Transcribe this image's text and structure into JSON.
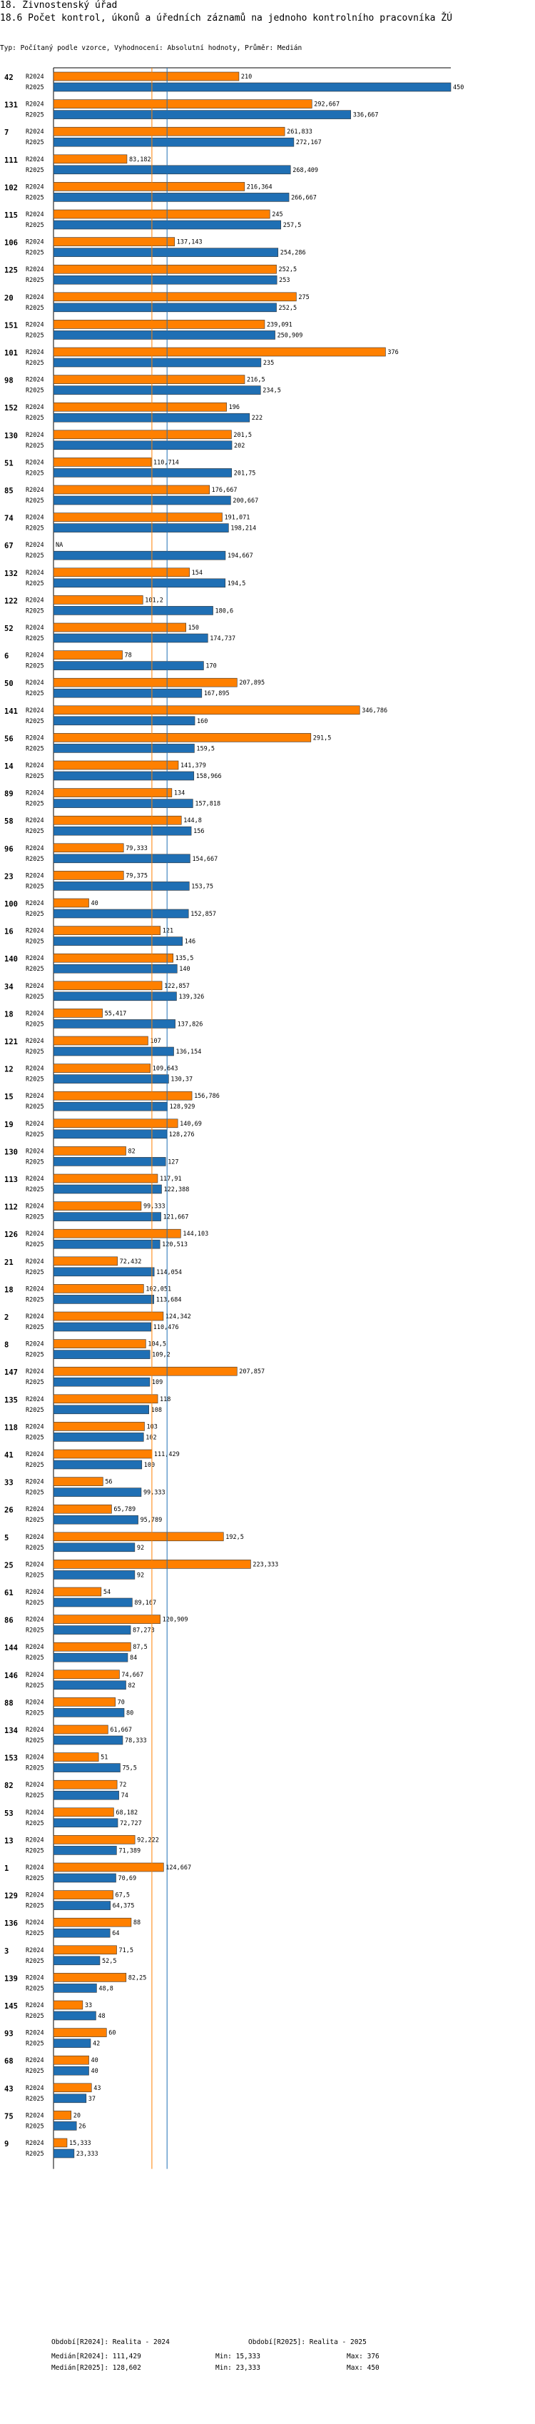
{
  "header": {
    "title": "18. Živnostenský úřad",
    "chart_title": "18.6 Počet kontrol, úkonů a úředních záznamů na jednoho kontrolního pracovníka ŽÚ",
    "subtitle": "Typ: Počítaný podle vzorce, Vyhodnocení: Absolutní hodnoty, Průměr: Medián"
  },
  "colors": {
    "r2024": "#FF8000",
    "r2025": "#1F6FB4",
    "median2024": "#FF8000",
    "median2025": "#1F6FB4",
    "outline": "#333333",
    "axis": "#000000"
  },
  "chart_data": {
    "type": "bar",
    "orientation": "horizontal",
    "title": "18.6 Počet kontrol, úkonů a úředních záznamů na jednoho kontrolního pracovníka ŽÚ",
    "xlim": [
      0,
      450
    ],
    "series_names": [
      "R2024",
      "R2025"
    ],
    "categories": [
      "42",
      "131",
      "7",
      "111",
      "102",
      "115",
      "106",
      "125",
      "20",
      "151",
      "101",
      "98",
      "152",
      "130",
      "51",
      "85",
      "74",
      "67",
      "132",
      "122",
      "52",
      "6",
      "50",
      "141",
      "56",
      "14",
      "89",
      "58",
      "96",
      "23",
      "100",
      "16",
      "140",
      "34",
      "18",
      "121",
      "12",
      "15",
      "19",
      "130",
      "113",
      "112",
      "126",
      "21",
      "18",
      "2",
      "8",
      "147",
      "135",
      "118",
      "41",
      "33",
      "26",
      "5",
      "25",
      "61",
      "86",
      "144",
      "146",
      "88",
      "134",
      "153",
      "82",
      "53",
      "13",
      "1",
      "129",
      "136",
      "3",
      "139",
      "145",
      "93",
      "68",
      "43",
      "75",
      "9"
    ],
    "r2024": [
      210,
      292.667,
      261.833,
      83.182,
      216.364,
      245,
      137.143,
      252.5,
      275,
      239.091,
      376,
      216.5,
      196,
      201.5,
      110.714,
      176.667,
      191.071,
      null,
      154,
      101.2,
      150,
      78,
      207.895,
      346.786,
      291.5,
      141.379,
      134,
      144.8,
      79.333,
      79.375,
      40,
      121,
      135.5,
      122.857,
      55.417,
      107,
      109.643,
      156.786,
      140.69,
      82,
      117.91,
      99.333,
      144.103,
      72.432,
      102.051,
      124.342,
      104.5,
      207.857,
      118,
      103,
      111.429,
      56,
      65.789,
      192.5,
      223.333,
      54,
      120.909,
      87.5,
      74.667,
      70,
      61.667,
      51,
      72,
      68.182,
      92.222,
      124.667,
      67.5,
      88,
      71.5,
      82.25,
      33,
      60,
      40,
      43,
      20,
      15.333
    ],
    "r2025": [
      450,
      336.667,
      272.167,
      268.409,
      266.667,
      257.5,
      254.286,
      253,
      252.5,
      250.909,
      235,
      234.5,
      222,
      202,
      201.75,
      200.667,
      198.214,
      194.667,
      194.5,
      180.6,
      174.737,
      170,
      167.895,
      160,
      159.5,
      158.966,
      157.818,
      156,
      154.667,
      153.75,
      152.857,
      146,
      140,
      139.326,
      137.826,
      136.154,
      130.37,
      128.929,
      128.276,
      127,
      122.388,
      121.667,
      120.513,
      114.054,
      113.684,
      110.476,
      109.2,
      109,
      108,
      102,
      100,
      99.333,
      95.789,
      92,
      92,
      89.167,
      87.273,
      84,
      82,
      80,
      78.333,
      75.5,
      74,
      72.727,
      71.389,
      70.69,
      64.375,
      64,
      52.5,
      48.8,
      48,
      42,
      40,
      37,
      26,
      23.333
    ],
    "r2024_labels": [
      "210",
      "292,667",
      "261,833",
      "83,182",
      "216,364",
      "245",
      "137,143",
      "252,5",
      "275",
      "239,091",
      "376",
      "216,5",
      "196",
      "201,5",
      "110,714",
      "176,667",
      "191,071",
      "NA",
      "154",
      "101,2",
      "150",
      "78",
      "207,895",
      "346,786",
      "291,5",
      "141,379",
      "134",
      "144,8",
      "79,333",
      "79,375",
      "40",
      "121",
      "135,5",
      "122,857",
      "55,417",
      "107",
      "109,643",
      "156,786",
      "140,69",
      "82",
      "117,91",
      "99,333",
      "144,103",
      "72,432",
      "102,051",
      "124,342",
      "104,5",
      "207,857",
      "118",
      "103",
      "111,429",
      "56",
      "65,789",
      "192,5",
      "223,333",
      "54",
      "120,909",
      "87,5",
      "74,667",
      "70",
      "61,667",
      "51",
      "72",
      "68,182",
      "92,222",
      "124,667",
      "67,5",
      "88",
      "71,5",
      "82,25",
      "33",
      "60",
      "40",
      "43",
      "20",
      "15,333"
    ],
    "r2025_labels": [
      "450",
      "336,667",
      "272,167",
      "268,409",
      "266,667",
      "257,5",
      "254,286",
      "253",
      "252,5",
      "250,909",
      "235",
      "234,5",
      "222",
      "202",
      "201,75",
      "200,667",
      "198,214",
      "194,667",
      "194,5",
      "180,6",
      "174,737",
      "170",
      "167,895",
      "160",
      "159,5",
      "158,966",
      "157,818",
      "156",
      "154,667",
      "153,75",
      "152,857",
      "146",
      "140",
      "139,326",
      "137,826",
      "136,154",
      "130,37",
      "128,929",
      "128,276",
      "127",
      "122,388",
      "121,667",
      "120,513",
      "114,054",
      "113,684",
      "110,476",
      "109,2",
      "109",
      "108",
      "102",
      "100",
      "99,333",
      "95,789",
      "92",
      "92",
      "89,167",
      "87,273",
      "84",
      "82",
      "80",
      "78,333",
      "75,5",
      "74",
      "72,727",
      "71,389",
      "70,69",
      "64,375",
      "64",
      "52,5",
      "48,8",
      "48",
      "42",
      "40",
      "37",
      "26",
      "23,333"
    ],
    "median_r2024": 111.429,
    "median_r2025": 128.602
  },
  "legend": {
    "period_2024": "Období[R2024]: Realita - 2024",
    "period_2025": "Období[R2025]: Realita - 2025"
  },
  "stats": {
    "median_2024": "Medián[R2024]: 111,429",
    "median_2025": "Medián[R2025]: 128,602",
    "min_2024": "Min: 15,333",
    "min_2025": "Min: 23,333",
    "max_2024": "Max: 376",
    "max_2025": "Max: 450"
  }
}
